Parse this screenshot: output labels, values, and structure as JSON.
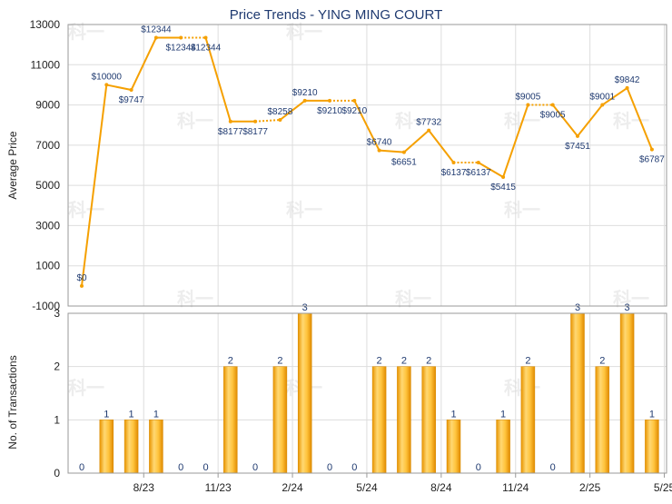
{
  "chart_data": [
    {
      "type": "line",
      "title": "Price Trends - YING MING COURT",
      "ylabel": "Average Price",
      "ylim": [
        -1000,
        13000
      ],
      "yticks": [
        -1000,
        1000,
        3000,
        5000,
        7000,
        9000,
        11000,
        13000
      ],
      "grid": true,
      "series": [
        {
          "color": "#f5a000",
          "points": [
            {
              "x": "2023-06",
              "y": 0,
              "label": "$0"
            },
            {
              "x": "2023-07",
              "y": 10000,
              "label": "$10000"
            },
            {
              "x": "2023-08",
              "y": 9747,
              "label": "$9747"
            },
            {
              "x": "2023-09",
              "y": 12344,
              "label": "$12344"
            },
            {
              "x": "2023-10",
              "y": 12344,
              "label": "$12344"
            },
            {
              "x": "2023-11",
              "y": 12344,
              "label": "$12344"
            },
            {
              "x": "2023-12",
              "y": 8177,
              "label": "$8177"
            },
            {
              "x": "2024-01",
              "y": 8177,
              "label": "$8177"
            },
            {
              "x": "2024-02",
              "y": 8258,
              "label": "$8258"
            },
            {
              "x": "2024-03",
              "y": 9210,
              "label": "$9210"
            },
            {
              "x": "2024-04",
              "y": 9210,
              "label": "$9210"
            },
            {
              "x": "2024-05",
              "y": 9210,
              "label": "$9210"
            },
            {
              "x": "2024-06",
              "y": 6740,
              "label": "$6740"
            },
            {
              "x": "2024-07",
              "y": 6651,
              "label": "$6651"
            },
            {
              "x": "2024-08",
              "y": 7732,
              "label": "$7732"
            },
            {
              "x": "2024-09",
              "y": 6137,
              "label": "$6137"
            },
            {
              "x": "2024-10",
              "y": 6137,
              "label": "$6137"
            },
            {
              "x": "2024-11",
              "y": 5415,
              "label": "$5415"
            },
            {
              "x": "2024-12",
              "y": 9005,
              "label": "$9005"
            },
            {
              "x": "2025-01",
              "y": 9005,
              "label": "$9005"
            },
            {
              "x": "2025-02",
              "y": 7451,
              "label": "$7451"
            },
            {
              "x": "2025-03",
              "y": 9001,
              "label": "$9001"
            },
            {
              "x": "2025-04",
              "y": 9842,
              "label": "$9842"
            },
            {
              "x": "2025-05",
              "y": 6787,
              "label": "$6787"
            }
          ]
        }
      ],
      "dotted_segments": [
        [
          4,
          5
        ],
        [
          7,
          8
        ],
        [
          10,
          11
        ],
        [
          15,
          16
        ],
        [
          18,
          19
        ]
      ]
    },
    {
      "type": "bar",
      "ylabel": "No. of Transactions",
      "ylim": [
        0,
        3
      ],
      "yticks": [
        0,
        1,
        2,
        3
      ],
      "grid": true,
      "categories": [
        "2023-06",
        "2023-07",
        "2023-08",
        "2023-09",
        "2023-10",
        "2023-11",
        "2023-12",
        "2024-01",
        "2024-02",
        "2024-03",
        "2024-04",
        "2024-05",
        "2024-06",
        "2024-07",
        "2024-08",
        "2024-09",
        "2024-10",
        "2024-11",
        "2024-12",
        "2025-01",
        "2025-02",
        "2025-03",
        "2025-04",
        "2025-05"
      ],
      "values": [
        0,
        1,
        1,
        1,
        0,
        0,
        2,
        0,
        2,
        3,
        0,
        0,
        2,
        2,
        2,
        1,
        0,
        1,
        2,
        0,
        3,
        2,
        3,
        1
      ],
      "xtick_labels": [
        "8/23",
        "11/23",
        "2/24",
        "5/24",
        "8/24",
        "11/24",
        "2/25",
        "5/25"
      ],
      "color": "#f5a000"
    }
  ],
  "watermark": "科一"
}
